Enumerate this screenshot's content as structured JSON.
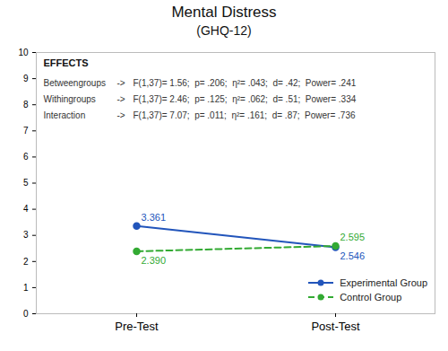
{
  "chart_data": {
    "type": "line",
    "title": "Mental Distress",
    "subtitle": "(GHQ-12)",
    "categories": [
      "Pre-Test",
      "Post-Test"
    ],
    "series": [
      {
        "name": "Experimental Group",
        "color": "#2255bb",
        "values": [
          3.361,
          2.546
        ],
        "value_labels": [
          "3.361",
          "2.546"
        ],
        "line_style": "solid",
        "marker": "circle"
      },
      {
        "name": "Control Group",
        "color": "#33aa33",
        "values": [
          2.39,
          2.595
        ],
        "value_labels": [
          "2.390",
          "2.595"
        ],
        "line_style": "dashed",
        "marker": "circle"
      }
    ],
    "ylim": [
      0,
      10
    ],
    "yticks": [
      0,
      1,
      2,
      3,
      4,
      5,
      6,
      7,
      8,
      9,
      10
    ],
    "grid": false,
    "legend": "lower right",
    "data_labels": true,
    "annotations": {
      "title": "EFFECTS",
      "rows": [
        [
          "Betweengroups",
          "->",
          "F(1,37)= 1.56;  p= .206;  η²= .043;  d= .42;  Power= .241"
        ],
        [
          "Withingroups",
          "->",
          "F(1,37)= 2.46;  p= .125;  η²= .062;  d= .51;  Power= .334"
        ],
        [
          "Interaction",
          "->",
          "F(1,37)= 7.07;  p= .011;  η²= .161;  d= .87;  Power= .736"
        ]
      ]
    }
  }
}
